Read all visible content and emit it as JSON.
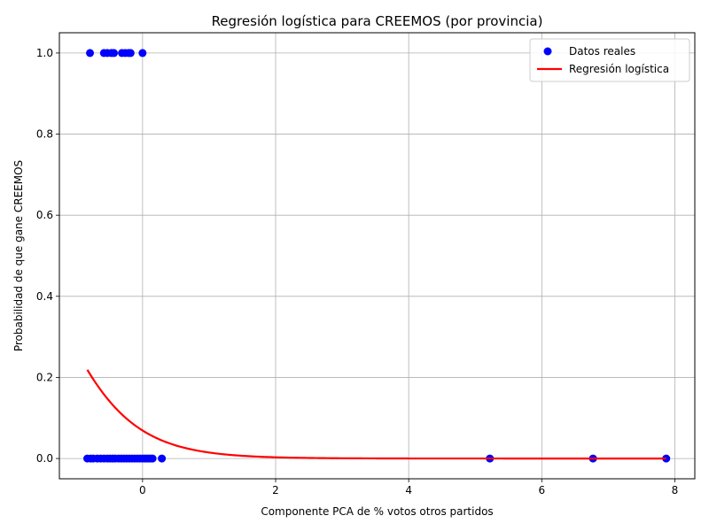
{
  "chart_data": {
    "type": "scatter",
    "title": "Regresión logística para CREEMOS (por provincia)",
    "xlabel": "Componente PCA de % votos otros partidos",
    "ylabel": "Probabilidad de que gane CREEMOS",
    "xlim": [
      -1.25,
      8.3
    ],
    "ylim": [
      -0.05,
      1.05
    ],
    "x_ticks": [
      0,
      2,
      4,
      6,
      8
    ],
    "x_tick_labels": [
      "0",
      "2",
      "4",
      "6",
      "8"
    ],
    "y_ticks": [
      0.0,
      0.2,
      0.4,
      0.6,
      0.8,
      1.0
    ],
    "y_tick_labels": [
      "0.0",
      "0.2",
      "0.4",
      "0.6",
      "0.8",
      "1.0"
    ],
    "grid": true,
    "legend_position": "top-right",
    "colors": {
      "points": "#0000ff",
      "curve": "#ff0000",
      "grid": "#b0b0b0"
    },
    "series": [
      {
        "name": "Datos reales",
        "kind": "scatter",
        "points": [
          {
            "x": -0.79,
            "y": 1
          },
          {
            "x": -0.58,
            "y": 1
          },
          {
            "x": -0.53,
            "y": 1
          },
          {
            "x": -0.47,
            "y": 1
          },
          {
            "x": -0.43,
            "y": 1
          },
          {
            "x": -0.31,
            "y": 1
          },
          {
            "x": -0.26,
            "y": 1
          },
          {
            "x": -0.21,
            "y": 1
          },
          {
            "x": -0.18,
            "y": 1
          },
          {
            "x": 0.0,
            "y": 1
          },
          {
            "x": -0.83,
            "y": 0
          },
          {
            "x": -0.78,
            "y": 0
          },
          {
            "x": -0.74,
            "y": 0
          },
          {
            "x": -0.68,
            "y": 0
          },
          {
            "x": -0.63,
            "y": 0
          },
          {
            "x": -0.58,
            "y": 0
          },
          {
            "x": -0.53,
            "y": 0
          },
          {
            "x": -0.49,
            "y": 0
          },
          {
            "x": -0.45,
            "y": 0
          },
          {
            "x": -0.41,
            "y": 0
          },
          {
            "x": -0.36,
            "y": 0
          },
          {
            "x": -0.32,
            "y": 0
          },
          {
            "x": -0.28,
            "y": 0
          },
          {
            "x": -0.24,
            "y": 0
          },
          {
            "x": -0.2,
            "y": 0
          },
          {
            "x": -0.16,
            "y": 0
          },
          {
            "x": -0.12,
            "y": 0
          },
          {
            "x": -0.08,
            "y": 0
          },
          {
            "x": -0.04,
            "y": 0
          },
          {
            "x": 0.0,
            "y": 0
          },
          {
            "x": 0.03,
            "y": 0
          },
          {
            "x": 0.06,
            "y": 0
          },
          {
            "x": 0.09,
            "y": 0
          },
          {
            "x": 0.12,
            "y": 0
          },
          {
            "x": 0.15,
            "y": 0
          },
          {
            "x": 0.29,
            "y": 0
          },
          {
            "x": 5.22,
            "y": 0
          },
          {
            "x": 6.77,
            "y": 0
          },
          {
            "x": 7.87,
            "y": 0
          }
        ]
      },
      {
        "name": "Regresión logística",
        "kind": "line",
        "x_range": [
          -0.83,
          7.87
        ],
        "logistic": {
          "intercept": -2.6,
          "slope": -1.6
        }
      }
    ]
  }
}
